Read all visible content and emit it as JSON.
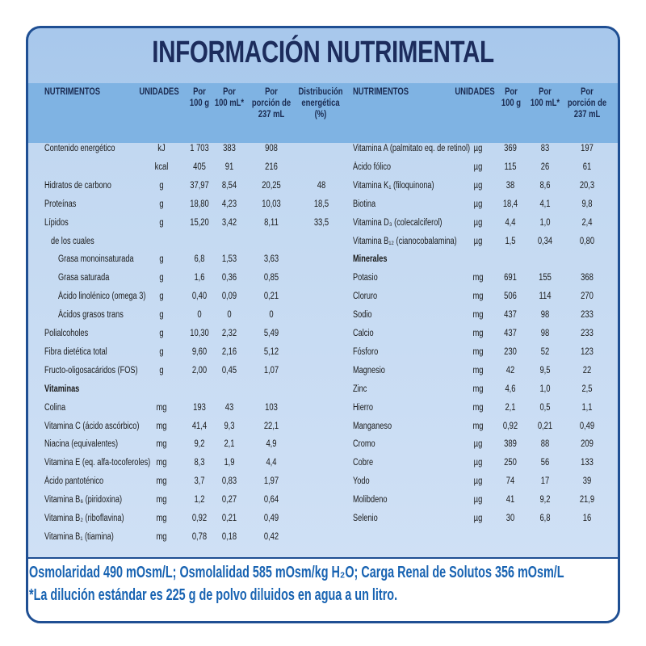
{
  "title": "INFORMACIÓN NUTRIMENTAL",
  "left_table": {
    "headers": [
      [
        "NUTRIMENTOS"
      ],
      [
        "UNIDADES"
      ],
      [
        "Por",
        "100 g"
      ],
      [
        "Por",
        "100 mL*"
      ],
      [
        "Por",
        "porción de",
        "237 mL"
      ],
      [
        "Distribución",
        "energética",
        "(%)"
      ]
    ],
    "rows": [
      [
        "Contenido energético",
        "kJ",
        "1 703",
        "383",
        "908",
        null
      ],
      [
        null,
        "kcal",
        "405",
        "91",
        "216",
        null
      ],
      [
        "Hidratos de carbono",
        "g",
        "37,97",
        "8,54",
        "20,25",
        "48"
      ],
      [
        "Proteínas",
        "g",
        "18,80",
        "4,23",
        "10,03",
        "18,5"
      ],
      [
        "Lípidos",
        "g",
        "15,20",
        "3,42",
        "8,11",
        "33,5"
      ],
      [
        "de los cuales",
        null,
        null,
        null,
        null,
        null
      ],
      [
        "Grasa monoinsaturada",
        "g",
        "6,8",
        "1,53",
        "3,63",
        null
      ],
      [
        "Grasa saturada",
        "g",
        "1,6",
        "0,36",
        "0,85",
        null
      ],
      [
        "Ácido linolénico (omega 3)",
        "g",
        "0,40",
        "0,09",
        "0,21",
        null
      ],
      [
        "Ácidos grasos trans",
        "g",
        "0",
        "0",
        "0",
        null
      ],
      [
        "Polialcoholes",
        "g",
        "10,30",
        "2,32",
        "5,49",
        null
      ],
      [
        "Fibra dietética total",
        "g",
        "9,60",
        "2,16",
        "5,12",
        null
      ],
      [
        "Fructo-oligosacáridos (FOS)",
        "g",
        "2,00",
        "0,45",
        "1,07",
        null
      ],
      [
        "Vitaminas",
        null,
        null,
        null,
        null,
        null
      ],
      [
        "Colina",
        "mg",
        "193",
        "43",
        "103",
        null
      ],
      [
        "Vitamina C (ácido ascórbico)",
        "mg",
        "41,4",
        "9,3",
        "22,1",
        null
      ],
      [
        "Niacina (equivalentes)",
        "mg",
        "9,2",
        "2,1",
        "4,9",
        null
      ],
      [
        "Vitamina E (eq. alfa-tocoferoles)",
        "mg",
        "8,3",
        "1,9",
        "4,4",
        null
      ],
      [
        "Ácido pantoténico",
        "mg",
        "3,7",
        "0,83",
        "1,97",
        null
      ],
      [
        "Vitamina B₆ (piridoxina)",
        "mg",
        "1,2",
        "0,27",
        "0,64",
        null
      ],
      [
        "Vitamina B₂ (riboflavina)",
        "mg",
        "0,92",
        "0,21",
        "0,49",
        null
      ],
      [
        "Vitamina B₁ (tiamina)",
        "mg",
        "0,78",
        "0,18",
        "0,42",
        null
      ]
    ]
  },
  "right_table": {
    "headers": [
      [
        "NUTRIMENTOS"
      ],
      [
        "UNIDADES"
      ],
      [
        "Por",
        "100 g"
      ],
      [
        "Por",
        "100 mL*"
      ],
      [
        "Por",
        "porción de",
        "237 mL"
      ]
    ],
    "rows": [
      [
        "Vitamina A (palmitato eq. de retinol)",
        "µg",
        "369",
        "83",
        "197"
      ],
      [
        "Ácido fólico",
        "µg",
        "115",
        "26",
        "61"
      ],
      [
        "Vitamina K₁ (filoquinona)",
        "µg",
        "38",
        "8,6",
        "20,3"
      ],
      [
        "Biotina",
        "µg",
        "18,4",
        "4,1",
        "9,8"
      ],
      [
        "Vitamina D₃ (colecalciferol)",
        "µg",
        "4,4",
        "1,0",
        "2,4"
      ],
      [
        "Vitamina B₁₂ (cianocobalamina)",
        "µg",
        "1,5",
        "0,34",
        "0,80"
      ],
      [
        "Minerales",
        null,
        null,
        null,
        null
      ],
      [
        "Potasio",
        "mg",
        "691",
        "155",
        "368"
      ],
      [
        "Cloruro",
        "mg",
        "506",
        "114",
        "270"
      ],
      [
        "Sodio",
        "mg",
        "437",
        "98",
        "233"
      ],
      [
        "Calcio",
        "mg",
        "437",
        "98",
        "233"
      ],
      [
        "Fósforo",
        "mg",
        "230",
        "52",
        "123"
      ],
      [
        "Magnesio",
        "mg",
        "42",
        "9,5",
        "22"
      ],
      [
        "Zinc",
        "mg",
        "4,6",
        "1,0",
        "2,5"
      ],
      [
        "Hierro",
        "mg",
        "2,1",
        "0,5",
        "1,1"
      ],
      [
        "Manganeso",
        "mg",
        "0,92",
        "0,21",
        "0,49"
      ],
      [
        "Cromo",
        "µg",
        "389",
        "88",
        "209"
      ],
      [
        "Cobre",
        "µg",
        "250",
        "56",
        "133"
      ],
      [
        "Yodo",
        "µg",
        "74",
        "17",
        "39"
      ],
      [
        "Molibdeno",
        "µg",
        "41",
        "9,2",
        "21,9"
      ],
      [
        "Selenio",
        "µg",
        "30",
        "6,8",
        "16"
      ]
    ]
  },
  "footer": [
    "Osmolaridad 490 mOsm/L; Osmolalidad 585 mOsm/kg H₂O; Carga Renal de Solutos 356 mOsm/L",
    "*La dilución estándar es 225 g de polvo diluidos en agua a un litro."
  ]
}
